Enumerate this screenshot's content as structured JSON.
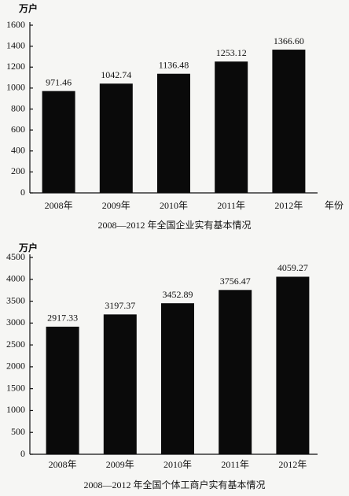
{
  "chart_data": [
    {
      "type": "bar",
      "title": "2008—2012 年全国企业实有基本情况",
      "y_label": "万户",
      "x_label": "年份",
      "categories": [
        "2008年",
        "2009年",
        "2010年",
        "2011年",
        "2012年"
      ],
      "values": [
        971.46,
        1042.74,
        1136.48,
        1253.12,
        1366.6
      ],
      "value_labels": [
        "971.46",
        "1042.74",
        "1136.48",
        "1253.12",
        "1366.60"
      ],
      "color": "#0a0a0a",
      "ylim": [
        0,
        1600
      ],
      "yticks": [
        0,
        200,
        400,
        600,
        800,
        1000,
        1200,
        1400,
        1600
      ]
    },
    {
      "type": "bar",
      "title": "2008—2012 年全国个体工商户实有基本情况",
      "y_label": "万户",
      "categories": [
        "2008年",
        "2009年",
        "2010年",
        "2011年",
        "2012年"
      ],
      "values": [
        2917.33,
        3197.37,
        3452.89,
        3756.47,
        4059.27
      ],
      "value_labels": [
        "2917.33",
        "3197.37",
        "3452.89",
        "3756.47",
        "4059.27"
      ],
      "color": "#0a0a0a",
      "ylim": [
        0,
        4500
      ],
      "yticks": [
        0,
        500,
        1000,
        1500,
        2000,
        2500,
        3000,
        3500,
        4000,
        4500
      ]
    }
  ]
}
